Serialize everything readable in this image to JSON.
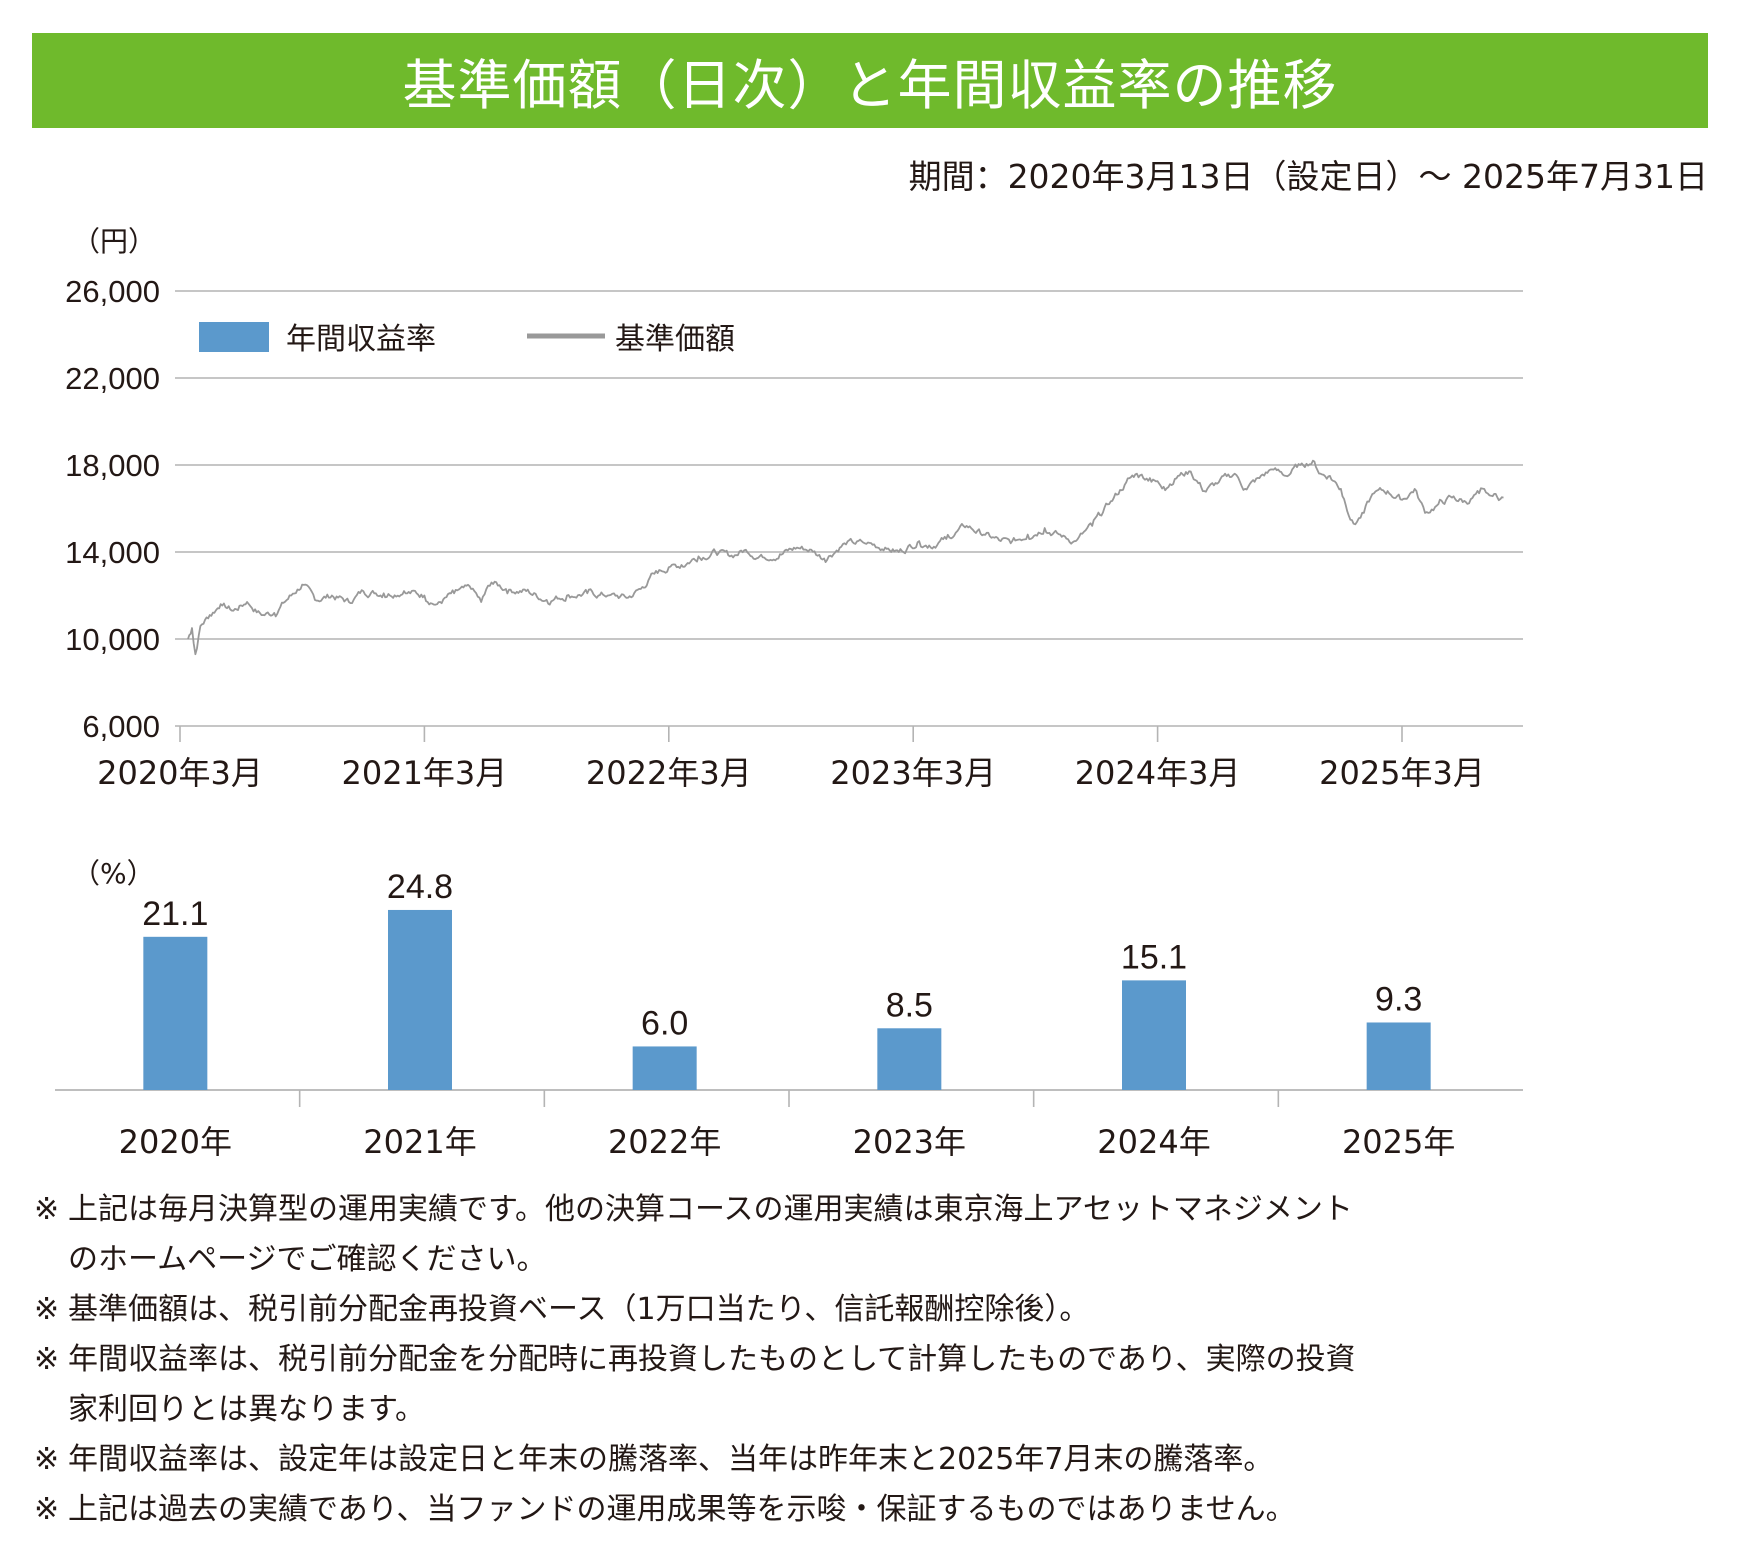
{
  "title": "基準価額（日次）と年間収益率の推移",
  "period": "期間：2020年3月13日（設定日）〜 2025年7月31日",
  "colors": {
    "title_bar": "#6fba2c",
    "bar": "#5b99cc",
    "line": "#999999",
    "grid": "#b4b4b4",
    "text": "#231815"
  },
  "chart_data": [
    {
      "type": "line",
      "title": "基準価額",
      "ylabel": "（円）",
      "ylim": [
        6000,
        26000
      ],
      "yticks": [
        26000,
        22000,
        18000,
        14000,
        10000,
        6000
      ],
      "ytick_labels": [
        "26,000",
        "22,000",
        "18,000",
        "14,000",
        "10,000",
        "6,000"
      ],
      "xticks": [
        "2020-03",
        "2021-03",
        "2022-03",
        "2023-03",
        "2024-03",
        "2025-03"
      ],
      "xtick_labels": [
        "2020年3月",
        "2021年3月",
        "2022年3月",
        "2023年3月",
        "2024年3月",
        "2025年3月"
      ],
      "xrange": [
        "2020-03-13",
        "2025-07-31"
      ],
      "grid": true,
      "legend": {
        "placement": "top-left",
        "entries": [
          {
            "label": "年間収益率",
            "kind": "bar"
          },
          {
            "label": "基準価額",
            "kind": "line"
          }
        ]
      },
      "series": [
        {
          "name": "基準価額",
          "points": [
            [
              "2020-03-13",
              10000
            ],
            [
              "2020-03-19",
              10500
            ],
            [
              "2020-03-24",
              9300
            ],
            [
              "2020-04-01",
              10600
            ],
            [
              "2020-04-15",
              11100
            ],
            [
              "2020-05-01",
              11600
            ],
            [
              "2020-05-20",
              11300
            ],
            [
              "2020-06-10",
              11700
            ],
            [
              "2020-07-01",
              11100
            ],
            [
              "2020-07-20",
              11200
            ],
            [
              "2020-08-15",
              12000
            ],
            [
              "2020-09-01",
              12500
            ],
            [
              "2020-09-20",
              11800
            ],
            [
              "2020-10-15",
              12000
            ],
            [
              "2020-11-10",
              11700
            ],
            [
              "2020-12-01",
              12200
            ],
            [
              "2021-01-01",
              12100
            ],
            [
              "2021-02-01",
              12200
            ],
            [
              "2021-03-01",
              12000
            ],
            [
              "2021-03-20",
              11600
            ],
            [
              "2021-04-15",
              12100
            ],
            [
              "2021-05-10",
              12300
            ],
            [
              "2021-05-25",
              11700
            ],
            [
              "2021-06-10",
              12600
            ],
            [
              "2021-07-01",
              12300
            ],
            [
              "2021-08-01",
              12200
            ],
            [
              "2021-09-01",
              11800
            ],
            [
              "2021-10-01",
              12000
            ],
            [
              "2021-11-01",
              12100
            ],
            [
              "2021-12-01",
              12000
            ],
            [
              "2022-01-01",
              11900
            ],
            [
              "2022-01-20",
              12300
            ],
            [
              "2022-02-10",
              13000
            ],
            [
              "2022-03-01",
              13300
            ],
            [
              "2022-03-20",
              13400
            ],
            [
              "2022-04-15",
              13800
            ],
            [
              "2022-05-10",
              14000
            ],
            [
              "2022-06-01",
              13800
            ],
            [
              "2022-06-25",
              14100
            ],
            [
              "2022-07-15",
              13800
            ],
            [
              "2022-08-15",
              13900
            ],
            [
              "2022-09-10",
              14200
            ],
            [
              "2022-10-01",
              14100
            ],
            [
              "2022-10-20",
              13700
            ],
            [
              "2022-11-20",
              14400
            ],
            [
              "2022-12-20",
              14400
            ],
            [
              "2023-01-20",
              14200
            ],
            [
              "2023-02-10",
              14000
            ],
            [
              "2023-03-10",
              14500
            ],
            [
              "2023-03-25",
              14300
            ],
            [
              "2023-04-20",
              14600
            ],
            [
              "2023-05-20",
              15200
            ],
            [
              "2023-06-15",
              14800
            ],
            [
              "2023-07-10",
              14500
            ],
            [
              "2023-07-25",
              14400
            ],
            [
              "2023-08-20",
              14800
            ],
            [
              "2023-09-15",
              15100
            ],
            [
              "2023-10-10",
              14700
            ],
            [
              "2023-10-31",
              14500
            ],
            [
              "2023-11-25",
              15200
            ],
            [
              "2023-12-20",
              16200
            ],
            [
              "2024-01-15",
              17200
            ],
            [
              "2024-01-31",
              17600
            ],
            [
              "2024-02-20",
              17400
            ],
            [
              "2024-03-10",
              17000
            ],
            [
              "2024-04-01",
              17500
            ],
            [
              "2024-04-20",
              17700
            ],
            [
              "2024-05-10",
              16800
            ],
            [
              "2024-06-01",
              17200
            ],
            [
              "2024-06-25",
              17600
            ],
            [
              "2024-07-10",
              16900
            ],
            [
              "2024-08-01",
              17400
            ],
            [
              "2024-08-20",
              17800
            ],
            [
              "2024-09-10",
              17500
            ],
            [
              "2024-10-01",
              18000
            ],
            [
              "2024-10-20",
              18200
            ],
            [
              "2024-11-01",
              17600
            ],
            [
              "2024-11-15",
              17500
            ],
            [
              "2024-12-01",
              16900
            ],
            [
              "2024-12-20",
              15300
            ],
            [
              "2025-01-05",
              15800
            ],
            [
              "2025-01-20",
              16700
            ],
            [
              "2025-02-10",
              16800
            ],
            [
              "2025-03-01",
              16400
            ],
            [
              "2025-03-20",
              16900
            ],
            [
              "2025-04-05",
              15800
            ],
            [
              "2025-04-25",
              16200
            ],
            [
              "2025-05-15",
              16500
            ],
            [
              "2025-06-05",
              16300
            ],
            [
              "2025-06-25",
              16700
            ],
            [
              "2025-07-10",
              16600
            ],
            [
              "2025-07-31",
              16500
            ]
          ]
        }
      ]
    },
    {
      "type": "bar",
      "title": "年間収益率",
      "ylabel": "（%）",
      "categories": [
        "2020年",
        "2021年",
        "2022年",
        "2023年",
        "2024年",
        "2025年"
      ],
      "values": [
        21.1,
        24.8,
        6.0,
        8.5,
        15.1,
        9.3
      ],
      "value_labels": [
        "21.1",
        "24.8",
        "6.0",
        "8.5",
        "15.1",
        "9.3"
      ],
      "ylim": [
        0,
        28
      ],
      "grid": false
    }
  ],
  "unit_yen": "（円）",
  "unit_pct": "（%）",
  "notes": [
    [
      "※",
      "上記は毎月決算型の運用実績です。他の決算コースの運用実績は東京海上アセットマネジメント",
      "のホームページでご確認ください。"
    ],
    [
      "※",
      "基準価額は、税引前分配金再投資ベース（1万口当たり、信託報酬控除後）。"
    ],
    [
      "※",
      "年間収益率は、税引前分配金を分配時に再投資したものとして計算したものであり、実際の投資",
      "家利回りとは異なります。"
    ],
    [
      "※",
      "年間収益率は、設定年は設定日と年末の騰落率、当年は昨年末と2025年7月末の騰落率。"
    ],
    [
      "※",
      "上記は過去の実績であり、当ファンドの運用成果等を示唆・保証するものではありません。"
    ]
  ]
}
